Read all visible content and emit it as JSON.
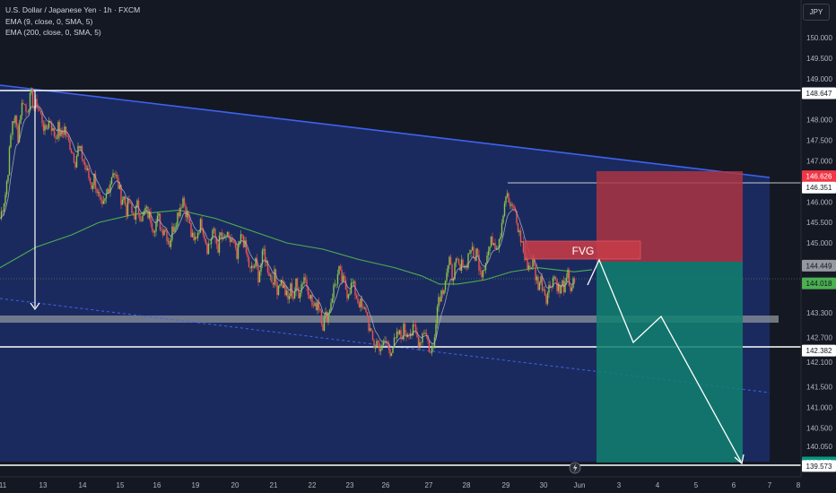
{
  "header": {
    "title": "U.S. Dollar / Japanese Yen · 1h · FXCM",
    "indicator1": "EMA (9, close, 0, SMA, 5)",
    "indicator2": "EMA (200, close, 0, SMA, 5)",
    "currency_button": "JPY"
  },
  "colors": {
    "background": "#141823",
    "zone_fill": "#1b2a5e",
    "trendline": "#3d63f0",
    "ema200": "#4caf50",
    "ema9": "#b5bac6",
    "bull": "#8bc34a",
    "bear": "#ef5350",
    "stop_zone": "#b2353f",
    "target_zone": "#108070",
    "fvg": "#c43b47"
  },
  "annotations": {
    "fvg_label": "FVG"
  },
  "chart_data": {
    "type": "candlestick",
    "symbol": "USDJPY",
    "timeframe": "1h",
    "ylim": [
      139.45,
      150.45
    ],
    "y_ticks": [
      150.0,
      149.5,
      149.0,
      148.0,
      147.5,
      147.0,
      146.0,
      145.5,
      145.0,
      143.3,
      142.7,
      142.1,
      141.5,
      141.0,
      140.5,
      140.05
    ],
    "x_ticks": [
      "11",
      "13",
      "14",
      "15",
      "16",
      "19",
      "20",
      "21",
      "22",
      "23",
      "26",
      "27",
      "28",
      "29",
      "30",
      "Jun",
      "3",
      "4",
      "5",
      "6",
      "7",
      "8"
    ],
    "price_labels": [
      {
        "value": "148.647",
        "color": "#ffffff",
        "text_color": "#131722"
      },
      {
        "value": "146.626",
        "color": "#f23645",
        "text_color": "#ffffff"
      },
      {
        "value": "146.351",
        "color": "#ffffff",
        "text_color": "#131722"
      },
      {
        "value": "144.449",
        "color": "#9598a1",
        "text_color": "#131722"
      },
      {
        "value": "144.018",
        "color": "#4caf50",
        "text_color": "#131722"
      },
      {
        "value": "142.382",
        "color": "#ffffff",
        "text_color": "#131722"
      },
      {
        "value": "139.658",
        "color": "#089981",
        "text_color": "#ffffff"
      },
      {
        "value": "139.573",
        "color": "#ffffff",
        "text_color": "#131722"
      }
    ],
    "close_path": [
      [
        0,
        145.6
      ],
      [
        3,
        145.9
      ],
      [
        6,
        146.2
      ],
      [
        9,
        146.8
      ],
      [
        12,
        147.6
      ],
      [
        14,
        148.0
      ],
      [
        17,
        148.0
      ],
      [
        20,
        147.6
      ],
      [
        23,
        148.2
      ],
      [
        26,
        148.5
      ],
      [
        29,
        148.2
      ],
      [
        32,
        148.4
      ],
      [
        35,
        148.6
      ],
      [
        38,
        148.3
      ],
      [
        41,
        148.4
      ],
      [
        44,
        148.2
      ],
      [
        47,
        148.0
      ],
      [
        50,
        147.7
      ],
      [
        53,
        147.9
      ],
      [
        56,
        148.0
      ],
      [
        59,
        147.7
      ],
      [
        62,
        147.6
      ],
      [
        65,
        147.8
      ],
      [
        68,
        147.6
      ],
      [
        72,
        147.8
      ],
      [
        75,
        147.5
      ],
      [
        78,
        147.4
      ],
      [
        81,
        147.2
      ],
      [
        84,
        147.0
      ],
      [
        87,
        147.3
      ],
      [
        90,
        147.2
      ],
      [
        93,
        147.0
      ],
      [
        96,
        146.8
      ],
      [
        99,
        146.6
      ],
      [
        102,
        146.4
      ],
      [
        105,
        146.6
      ],
      [
        108,
        146.3
      ],
      [
        111,
        146.0
      ],
      [
        114,
        145.8
      ],
      [
        117,
        146.0
      ],
      [
        120,
        146.3
      ],
      [
        123,
        146.5
      ],
      [
        126,
        146.8
      ],
      [
        129,
        146.6
      ],
      [
        132,
        146.4
      ],
      [
        135,
        146.1
      ],
      [
        138,
        146.1
      ],
      [
        141,
        145.8
      ],
      [
        144,
        146.0
      ],
      [
        147,
        145.7
      ],
      [
        150,
        145.7
      ],
      [
        153,
        145.9
      ],
      [
        156,
        145.7
      ],
      [
        159,
        145.6
      ],
      [
        162,
        145.8
      ],
      [
        165,
        145.7
      ],
      [
        168,
        145.6
      ],
      [
        171,
        145.4
      ],
      [
        174,
        145.5
      ],
      [
        177,
        145.6
      ],
      [
        180,
        145.3
      ],
      [
        183,
        145.4
      ],
      [
        186,
        145.2
      ],
      [
        189,
        145.0
      ],
      [
        192,
        145.3
      ],
      [
        195,
        145.5
      ],
      [
        198,
        145.7
      ],
      [
        201,
        145.9
      ],
      [
        204,
        146.1
      ],
      [
        207,
        145.8
      ],
      [
        210,
        145.6
      ],
      [
        213,
        145.2
      ],
      [
        216,
        145.0
      ],
      [
        219,
        145.2
      ],
      [
        222,
        145.4
      ],
      [
        225,
        145.5
      ],
      [
        228,
        145.2
      ],
      [
        231,
        144.9
      ],
      [
        234,
        145.0
      ],
      [
        237,
        145.3
      ],
      [
        240,
        145.1
      ],
      [
        243,
        144.9
      ],
      [
        246,
        145.2
      ],
      [
        249,
        145.0
      ],
      [
        252,
        145.2
      ],
      [
        255,
        145.0
      ],
      [
        258,
        145.1
      ],
      [
        261,
        144.9
      ],
      [
        264,
        144.6
      ],
      [
        267,
        145.0
      ],
      [
        270,
        145.2
      ],
      [
        273,
        144.9
      ],
      [
        276,
        144.6
      ],
      [
        279,
        144.3
      ],
      [
        282,
        144.4
      ],
      [
        285,
        144.5
      ],
      [
        288,
        144.2
      ],
      [
        291,
        144.5
      ],
      [
        294,
        144.8
      ],
      [
        297,
        144.5
      ],
      [
        300,
        144.3
      ],
      [
        303,
        144.1
      ],
      [
        306,
        144.2
      ],
      [
        309,
        143.9
      ],
      [
        312,
        144.1
      ],
      [
        315,
        144.0
      ],
      [
        318,
        143.8
      ],
      [
        321,
        143.6
      ],
      [
        324,
        143.9
      ],
      [
        327,
        143.7
      ],
      [
        330,
        144.0
      ],
      [
        333,
        143.8
      ],
      [
        336,
        144.0
      ],
      [
        339,
        144.2
      ],
      [
        342,
        144.0
      ],
      [
        345,
        143.8
      ],
      [
        348,
        143.5
      ],
      [
        351,
        143.4
      ],
      [
        354,
        143.6
      ],
      [
        357,
        143.4
      ],
      [
        360,
        143.0
      ],
      [
        363,
        143.2
      ],
      [
        366,
        143.3
      ],
      [
        369,
        143.6
      ],
      [
        372,
        143.9
      ],
      [
        375,
        144.1
      ],
      [
        378,
        144.3
      ],
      [
        381,
        144.1
      ],
      [
        384,
        144.0
      ],
      [
        387,
        143.8
      ],
      [
        390,
        143.9
      ],
      [
        393,
        144.0
      ],
      [
        396,
        143.8
      ],
      [
        399,
        143.6
      ],
      [
        402,
        143.5
      ],
      [
        405,
        143.3
      ],
      [
        408,
        143.4
      ],
      [
        411,
        143.0
      ],
      [
        414,
        142.7
      ],
      [
        417,
        142.5
      ],
      [
        420,
        142.6
      ],
      [
        423,
        142.5
      ],
      [
        426,
        142.4
      ],
      [
        429,
        142.6
      ],
      [
        432,
        142.5
      ],
      [
        435,
        142.4
      ],
      [
        438,
        142.5
      ],
      [
        441,
        142.6
      ],
      [
        444,
        142.8
      ],
      [
        447,
        142.7
      ],
      [
        450,
        142.9
      ],
      [
        453,
        142.8
      ],
      [
        456,
        142.9
      ],
      [
        459,
        142.8
      ],
      [
        462,
        142.9
      ],
      [
        465,
        142.7
      ],
      [
        468,
        142.6
      ],
      [
        471,
        142.8
      ],
      [
        474,
        142.9
      ],
      [
        477,
        142.6
      ],
      [
        480,
        142.3
      ],
      [
        483,
        142.5
      ],
      [
        486,
        143.2
      ],
      [
        489,
        143.7
      ],
      [
        492,
        143.8
      ],
      [
        495,
        144.0
      ],
      [
        498,
        144.3
      ],
      [
        501,
        144.5
      ],
      [
        504,
        144.2
      ],
      [
        507,
        144.4
      ],
      [
        510,
        144.5
      ],
      [
        513,
        144.3
      ],
      [
        516,
        144.6
      ],
      [
        519,
        144.4
      ],
      [
        522,
        144.7
      ],
      [
        525,
        144.9
      ],
      [
        528,
        144.6
      ],
      [
        531,
        144.8
      ],
      [
        534,
        144.5
      ],
      [
        537,
        144.3
      ],
      [
        540,
        144.5
      ],
      [
        543,
        144.7
      ],
      [
        546,
        144.9
      ],
      [
        549,
        145.1
      ],
      [
        552,
        145.0
      ],
      [
        555,
        145.0
      ],
      [
        558,
        145.3
      ],
      [
        561,
        145.8
      ],
      [
        564,
        146.2
      ],
      [
        567,
        146.0
      ],
      [
        570,
        145.8
      ],
      [
        573,
        145.9
      ],
      [
        576,
        145.5
      ],
      [
        579,
        145.2
      ],
      [
        582,
        145.0
      ],
      [
        585,
        144.6
      ],
      [
        588,
        144.5
      ],
      [
        591,
        144.4
      ],
      [
        594,
        144.6
      ],
      [
        597,
        144.2
      ],
      [
        600,
        144.0
      ],
      [
        603,
        144.1
      ],
      [
        606,
        143.9
      ],
      [
        609,
        143.7
      ],
      [
        612,
        143.9
      ],
      [
        615,
        144.1
      ],
      [
        618,
        144.2
      ],
      [
        621,
        144.0
      ],
      [
        624,
        143.8
      ],
      [
        627,
        144.0
      ],
      [
        630,
        143.9
      ],
      [
        633,
        144.2
      ],
      [
        636,
        143.9
      ],
      [
        639,
        144.0
      ],
      [
        642,
        143.95
      ]
    ],
    "ema200_path": [
      [
        0,
        144.4
      ],
      [
        40,
        144.9
      ],
      [
        80,
        145.2
      ],
      [
        110,
        145.5
      ],
      [
        150,
        145.7
      ],
      [
        200,
        145.8
      ],
      [
        240,
        145.6
      ],
      [
        280,
        145.3
      ],
      [
        320,
        145.0
      ],
      [
        360,
        144.85
      ],
      [
        400,
        144.6
      ],
      [
        440,
        144.4
      ],
      [
        470,
        144.2
      ],
      [
        490,
        144.0
      ],
      [
        510,
        144.0
      ],
      [
        540,
        144.1
      ],
      [
        570,
        144.3
      ],
      [
        600,
        144.4
      ],
      [
        640,
        144.3
      ],
      [
        660,
        144.35
      ]
    ]
  }
}
